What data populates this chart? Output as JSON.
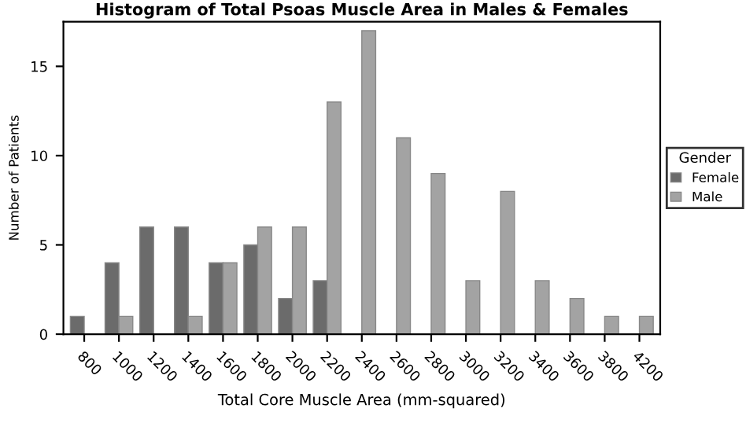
{
  "chart_data": {
    "type": "bar",
    "title": "Histogram of Total Psoas Muscle Area in Males & Females",
    "xlabel": "Total Core Muscle Area (mm-squared)",
    "ylabel": "Number of Patients",
    "legend_title": "Gender",
    "categories": [
      "800",
      "1000",
      "1200",
      "1400",
      "1600",
      "1800",
      "2000",
      "2200",
      "2400",
      "2600",
      "2800",
      "3000",
      "3200",
      "3400",
      "3600",
      "3800",
      "4200"
    ],
    "series": [
      {
        "name": "Female",
        "color": "#6b6b6b",
        "values": [
          1,
          4,
          6,
          6,
          4,
          5,
          2,
          3,
          null,
          null,
          null,
          null,
          null,
          null,
          null,
          null,
          null
        ]
      },
      {
        "name": "Male",
        "color": "#a3a3a3",
        "values": [
          null,
          1,
          null,
          1,
          4,
          6,
          6,
          13,
          17,
          11,
          9,
          3,
          8,
          3,
          2,
          1,
          1
        ]
      }
    ],
    "ylim": [
      0,
      17.5
    ],
    "yticks": [
      0,
      5,
      10,
      15
    ],
    "grid": false,
    "legend": "right"
  }
}
